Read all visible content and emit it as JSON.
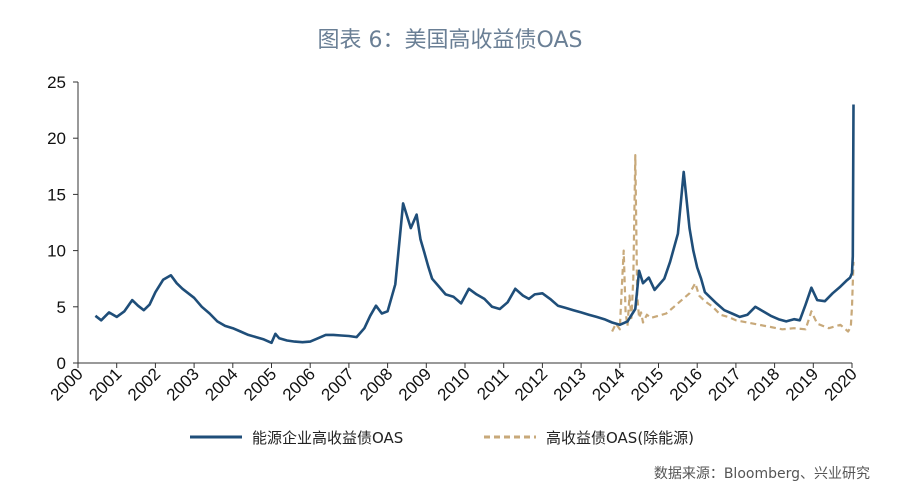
{
  "title": "图表 6：美国高收益债OAS",
  "source": "数据来源：Bloomberg、兴业研究",
  "colors": {
    "energy": "#1f4e79",
    "ex_energy": "#c8a97a",
    "axis": "#333333"
  },
  "chart_data": {
    "type": "line",
    "title": "图表 6：美国高收益债OAS",
    "ylim": [
      0,
      25
    ],
    "yticks": [
      0,
      5,
      10,
      15,
      20,
      25
    ],
    "xlim": [
      2000,
      2020
    ],
    "xticks": [
      "2000",
      "2001",
      "2002",
      "2003",
      "2004",
      "2005",
      "2006",
      "2007",
      "2008",
      "2009",
      "2010",
      "2011",
      "2012",
      "2013",
      "2014",
      "2015",
      "2016",
      "2017",
      "2018",
      "2019",
      "2020"
    ],
    "grid": false,
    "legend": "bottom",
    "series": [
      {
        "name": "能源企业高收益债OAS",
        "style": "solid",
        "x": [
          2000.45,
          2000.6,
          2000.8,
          2001.0,
          2001.2,
          2001.4,
          2001.55,
          2001.7,
          2001.85,
          2002.0,
          2002.2,
          2002.4,
          2002.55,
          2002.7,
          2002.85,
          2003.0,
          2003.2,
          2003.4,
          2003.6,
          2003.8,
          2004.0,
          2004.2,
          2004.4,
          2004.6,
          2004.8,
          2005.0,
          2005.1,
          2005.2,
          2005.4,
          2005.6,
          2005.8,
          2006.0,
          2006.2,
          2006.4,
          2006.6,
          2006.8,
          2007.0,
          2007.2,
          2007.4,
          2007.55,
          2007.7,
          2007.85,
          2008.0,
          2008.2,
          2008.4,
          2008.6,
          2008.75,
          2008.85,
          2008.95,
          2009.05,
          2009.15,
          2009.3,
          2009.5,
          2009.7,
          2009.9,
          2010.1,
          2010.3,
          2010.5,
          2010.7,
          2010.9,
          2011.1,
          2011.3,
          2011.5,
          2011.65,
          2011.8,
          2012.0,
          2012.2,
          2012.4,
          2012.6,
          2012.8,
          2013.0,
          2013.2,
          2013.4,
          2013.6,
          2013.8,
          2014.0,
          2014.2,
          2014.4,
          2014.5,
          2014.6,
          2014.75,
          2014.9,
          2015.0,
          2015.15,
          2015.3,
          2015.5,
          2015.65,
          2015.8,
          2015.9,
          2016.0,
          2016.1,
          2016.2,
          2016.35,
          2016.5,
          2016.7,
          2016.9,
          2017.1,
          2017.3,
          2017.5,
          2017.7,
          2017.9,
          2018.1,
          2018.3,
          2018.5,
          2018.65,
          2018.8,
          2018.95,
          2019.1,
          2019.3,
          2019.5,
          2019.7,
          2019.85,
          2019.95,
          2020.0,
          2020.02,
          2020.04
        ],
        "values": [
          4.2,
          3.8,
          4.5,
          4.1,
          4.6,
          5.6,
          5.1,
          4.7,
          5.2,
          6.3,
          7.4,
          7.8,
          7.1,
          6.6,
          6.2,
          5.8,
          5.0,
          4.4,
          3.7,
          3.3,
          3.1,
          2.8,
          2.5,
          2.3,
          2.1,
          1.8,
          2.6,
          2.2,
          2.0,
          1.9,
          1.85,
          1.9,
          2.2,
          2.5,
          2.5,
          2.45,
          2.4,
          2.3,
          3.1,
          4.2,
          5.1,
          4.4,
          4.6,
          7.0,
          14.2,
          12.0,
          13.2,
          11.0,
          9.8,
          8.6,
          7.5,
          6.9,
          6.1,
          5.9,
          5.3,
          6.6,
          6.1,
          5.7,
          5.0,
          4.8,
          5.4,
          6.6,
          6.0,
          5.7,
          6.1,
          6.2,
          5.7,
          5.1,
          4.9,
          4.7,
          4.5,
          4.3,
          4.1,
          3.9,
          3.6,
          3.4,
          3.7,
          4.8,
          8.2,
          7.1,
          7.6,
          6.5,
          6.9,
          7.5,
          9.0,
          11.5,
          17.0,
          12.0,
          10.0,
          8.5,
          7.5,
          6.3,
          5.8,
          5.3,
          4.7,
          4.4,
          4.1,
          4.3,
          5.0,
          4.6,
          4.2,
          3.9,
          3.7,
          3.9,
          3.8,
          5.2,
          6.7,
          5.6,
          5.5,
          6.2,
          6.8,
          7.3,
          7.6,
          8.0,
          9.5,
          23.0
        ]
      },
      {
        "name": "高收益债OAS(除能源)",
        "style": "dashed",
        "x": [
          2013.8,
          2013.9,
          2014.0,
          2014.05,
          2014.1,
          2014.15,
          2014.2,
          2014.25,
          2014.3,
          2014.35,
          2014.4,
          2014.45,
          2014.5,
          2014.55,
          2014.6,
          2014.7,
          2014.8,
          2015.0,
          2015.2,
          2015.4,
          2015.6,
          2015.8,
          2015.95,
          2016.05,
          2016.2,
          2016.4,
          2016.6,
          2016.8,
          2017.0,
          2017.3,
          2017.6,
          2017.9,
          2018.2,
          2018.5,
          2018.8,
          2018.95,
          2019.1,
          2019.4,
          2019.7,
          2019.9,
          2019.97,
          2020.0,
          2020.04
        ],
        "values": [
          2.8,
          3.5,
          3.0,
          6.5,
          10.0,
          4.5,
          3.3,
          6.0,
          4.0,
          7.5,
          18.5,
          6.0,
          4.0,
          4.5,
          3.6,
          4.3,
          4.0,
          4.2,
          4.4,
          5.0,
          5.6,
          6.2,
          7.1,
          6.0,
          5.5,
          5.0,
          4.3,
          4.1,
          3.8,
          3.6,
          3.4,
          3.2,
          3.0,
          3.1,
          3.0,
          4.6,
          3.5,
          3.1,
          3.4,
          2.8,
          3.2,
          5.0,
          9.0
        ]
      }
    ]
  }
}
